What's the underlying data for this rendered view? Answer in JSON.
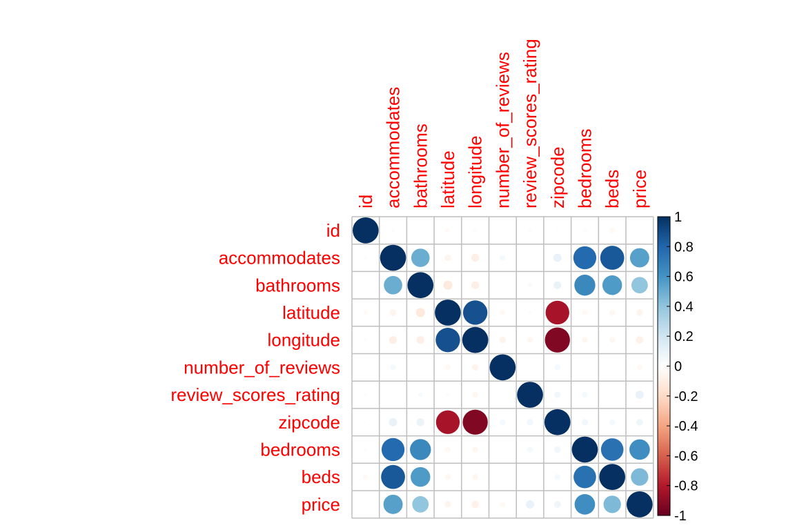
{
  "chart_data": {
    "type": "heatmap",
    "variables": [
      "id",
      "accommodates",
      "bathrooms",
      "latitude",
      "longitude",
      "number_of_reviews",
      "review_scores_rating",
      "zipcode",
      "bedrooms",
      "beds",
      "price"
    ],
    "matrix": [
      [
        1.0,
        -0.02,
        0.0,
        -0.03,
        -0.02,
        0.0,
        -0.02,
        -0.01,
        -0.02,
        -0.04,
        0.0
      ],
      [
        -0.02,
        1.0,
        0.5,
        -0.06,
        -0.09,
        0.05,
        0.01,
        0.1,
        0.78,
        0.85,
        0.55
      ],
      [
        0.0,
        0.5,
        1.0,
        -0.12,
        -0.09,
        0.01,
        0.03,
        0.09,
        0.65,
        0.57,
        0.4
      ],
      [
        -0.03,
        -0.06,
        -0.12,
        1.0,
        0.88,
        -0.04,
        -0.02,
        -0.83,
        -0.04,
        -0.05,
        -0.06
      ],
      [
        -0.02,
        -0.09,
        -0.09,
        0.88,
        1.0,
        -0.06,
        -0.05,
        -0.93,
        -0.05,
        -0.05,
        -0.08
      ],
      [
        0.0,
        0.05,
        0.01,
        -0.04,
        -0.06,
        1.0,
        0.0,
        0.05,
        0.01,
        0.01,
        -0.04
      ],
      [
        -0.02,
        0.01,
        0.03,
        -0.02,
        -0.05,
        0.0,
        1.0,
        0.06,
        0.05,
        0.0,
        0.1
      ],
      [
        -0.01,
        0.1,
        0.09,
        -0.83,
        -0.93,
        0.05,
        0.06,
        1.0,
        0.06,
        0.05,
        0.07
      ],
      [
        -0.02,
        0.78,
        0.65,
        -0.04,
        -0.05,
        0.01,
        0.05,
        0.06,
        1.0,
        0.75,
        0.62
      ],
      [
        -0.04,
        0.85,
        0.57,
        -0.05,
        -0.05,
        0.01,
        0.0,
        0.05,
        0.75,
        1.0,
        0.45
      ],
      [
        0.0,
        0.55,
        0.4,
        -0.06,
        -0.08,
        -0.04,
        0.1,
        0.07,
        0.62,
        0.45,
        1.0
      ]
    ],
    "legend": {
      "ticks": [
        "1",
        "0.8",
        "0.6",
        "0.4",
        "0.2",
        "0",
        "-0.2",
        "-0.4",
        "-0.6",
        "-0.8",
        "-1"
      ],
      "range": [
        -1,
        1
      ],
      "placement": "right"
    },
    "colors": {
      "label": "#ff0000",
      "grid": "#bebebe",
      "scale": [
        "#67001f",
        "#b2182b",
        "#d6604d",
        "#f4a582",
        "#fddbc7",
        "#ffffff",
        "#d1e5f0",
        "#92c5de",
        "#4393c3",
        "#2166ac",
        "#053061"
      ]
    }
  }
}
